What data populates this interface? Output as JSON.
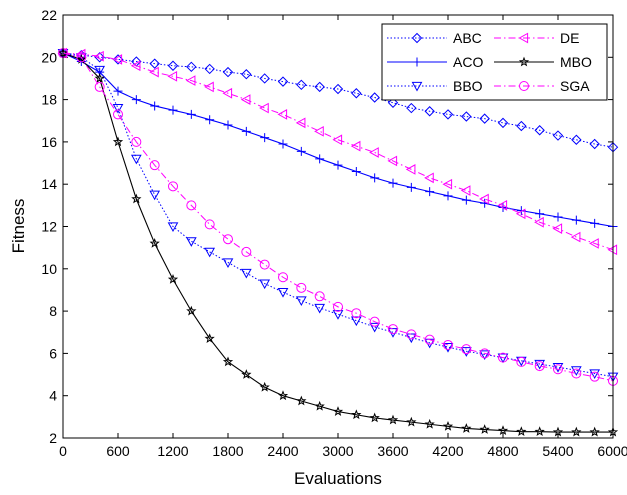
{
  "chart_data": {
    "type": "line",
    "xlabel": "Evaluations",
    "ylabel": "Fitness",
    "xlim": [
      0,
      6000
    ],
    "ylim": [
      2,
      22
    ],
    "xticks": [
      0,
      600,
      1200,
      1800,
      2400,
      3000,
      3600,
      4200,
      4800,
      5400,
      6000
    ],
    "yticks": [
      2,
      4,
      6,
      8,
      10,
      12,
      14,
      16,
      18,
      20,
      22
    ],
    "grid": false,
    "legend_position": "top-right",
    "x": [
      0,
      200,
      400,
      600,
      800,
      1000,
      1200,
      1400,
      1600,
      1800,
      2000,
      2200,
      2400,
      2600,
      2800,
      3000,
      3200,
      3400,
      3600,
      3800,
      4000,
      4200,
      4400,
      4600,
      4800,
      5000,
      5200,
      5400,
      5600,
      5800,
      6000
    ],
    "series": [
      {
        "name": "ABC",
        "color": "#0000ff",
        "line": "dotted",
        "marker": "diamond",
        "values": [
          20.2,
          20.1,
          20.0,
          19.9,
          19.8,
          19.7,
          19.6,
          19.55,
          19.45,
          19.3,
          19.2,
          19.0,
          18.85,
          18.7,
          18.6,
          18.5,
          18.3,
          18.1,
          17.85,
          17.6,
          17.45,
          17.3,
          17.2,
          17.1,
          16.9,
          16.75,
          16.55,
          16.3,
          16.1,
          15.9,
          15.75
        ]
      },
      {
        "name": "ACO",
        "color": "#0000ff",
        "line": "solid",
        "marker": "plus",
        "values": [
          20.2,
          19.8,
          19.3,
          18.4,
          18.0,
          17.7,
          17.5,
          17.3,
          17.05,
          16.8,
          16.5,
          16.2,
          15.9,
          15.55,
          15.2,
          14.9,
          14.6,
          14.3,
          14.05,
          13.85,
          13.65,
          13.45,
          13.25,
          13.1,
          12.9,
          12.75,
          12.6,
          12.45,
          12.3,
          12.15,
          12.0
        ]
      },
      {
        "name": "BBO",
        "color": "#0000ff",
        "line": "dotted",
        "marker": "triangle-down",
        "values": [
          20.2,
          20.0,
          19.4,
          17.6,
          15.2,
          13.5,
          12.0,
          11.3,
          10.8,
          10.3,
          9.8,
          9.3,
          8.9,
          8.5,
          8.15,
          7.85,
          7.55,
          7.25,
          7.0,
          6.75,
          6.5,
          6.3,
          6.1,
          5.95,
          5.8,
          5.65,
          5.5,
          5.35,
          5.2,
          5.05,
          4.9
        ]
      },
      {
        "name": "DE",
        "color": "#ff00ff",
        "line": "dashdot",
        "marker": "triangle-left",
        "values": [
          20.2,
          20.15,
          20.05,
          19.9,
          19.6,
          19.3,
          19.1,
          18.9,
          18.6,
          18.3,
          18.0,
          17.6,
          17.3,
          16.9,
          16.5,
          16.1,
          15.8,
          15.5,
          15.1,
          14.7,
          14.3,
          14.0,
          13.7,
          13.3,
          13.0,
          12.6,
          12.2,
          11.9,
          11.5,
          11.2,
          10.9
        ]
      },
      {
        "name": "MBO",
        "color": "#000000",
        "line": "solid",
        "marker": "star",
        "values": [
          20.2,
          19.9,
          19.0,
          16.0,
          13.3,
          11.2,
          9.5,
          8.0,
          6.7,
          5.6,
          5.0,
          4.4,
          4.0,
          3.75,
          3.5,
          3.25,
          3.1,
          2.95,
          2.85,
          2.75,
          2.65,
          2.55,
          2.45,
          2.4,
          2.35,
          2.3,
          2.3,
          2.28,
          2.28,
          2.28,
          2.28
        ]
      },
      {
        "name": "SGA",
        "color": "#ff00ff",
        "line": "dashdot",
        "marker": "circle",
        "values": [
          20.2,
          20.0,
          18.6,
          17.3,
          16.0,
          14.9,
          13.9,
          13.0,
          12.1,
          11.4,
          10.8,
          10.2,
          9.6,
          9.1,
          8.7,
          8.2,
          7.9,
          7.5,
          7.15,
          6.9,
          6.65,
          6.4,
          6.2,
          6.0,
          5.8,
          5.6,
          5.4,
          5.25,
          5.05,
          4.9,
          4.7
        ]
      }
    ]
  }
}
